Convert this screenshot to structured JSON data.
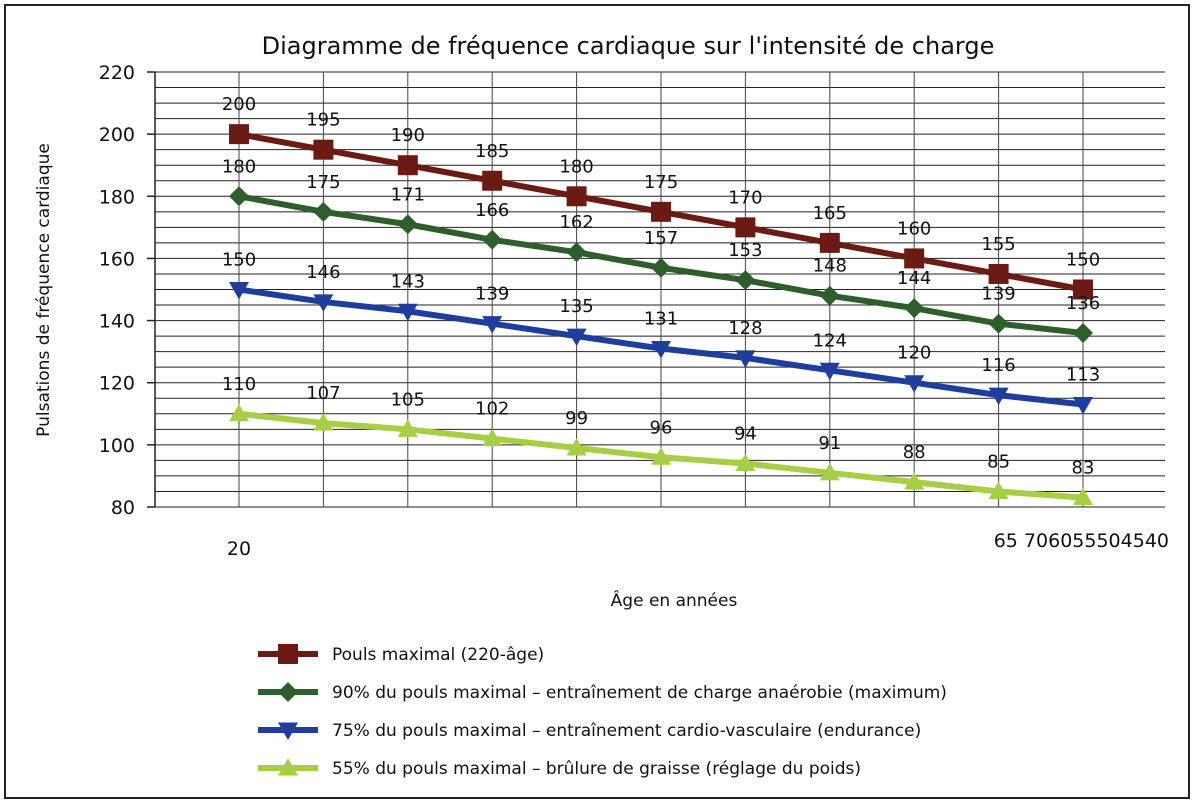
{
  "chart_data": {
    "type": "line",
    "title": "Diagramme de fréquence cardiaque sur l'intensité de charge",
    "xlabel": "Âge en années",
    "ylabel": "Pulsations de fréquence cardiaque",
    "ylim": [
      80,
      220
    ],
    "y_ticks": [
      80,
      100,
      120,
      140,
      160,
      180,
      200,
      220
    ],
    "x_tick_labels": {
      "left": "20",
      "right": "65 706055504540"
    },
    "grid": true,
    "legend_position": "bottom",
    "series": [
      {
        "name": "Pouls maximal (220-âge)",
        "color": "#6b1a14",
        "marker": "square",
        "values": [
          200,
          195,
          190,
          185,
          180,
          175,
          170,
          165,
          160,
          155,
          150
        ]
      },
      {
        "name": "90% du pouls maximal – entraînement de charge anaérobie (maximum)",
        "color": "#2d5e2b",
        "marker": "diamond",
        "values": [
          180,
          175,
          171,
          166,
          162,
          157,
          153,
          148,
          144,
          139,
          136
        ]
      },
      {
        "name": "75% du pouls maximal – entraînement cardio-vasculaire (endurance)",
        "color": "#1f3d9c",
        "marker": "triangle-down",
        "values": [
          150,
          146,
          143,
          139,
          135,
          131,
          128,
          124,
          120,
          116,
          113
        ]
      },
      {
        "name": "55% du pouls maximal – brûlure de graisse (réglage du poids)",
        "color": "#a6cf45",
        "marker": "triangle-up",
        "values": [
          110,
          107,
          105,
          102,
          99,
          96,
          94,
          91,
          88,
          85,
          83
        ]
      }
    ]
  }
}
